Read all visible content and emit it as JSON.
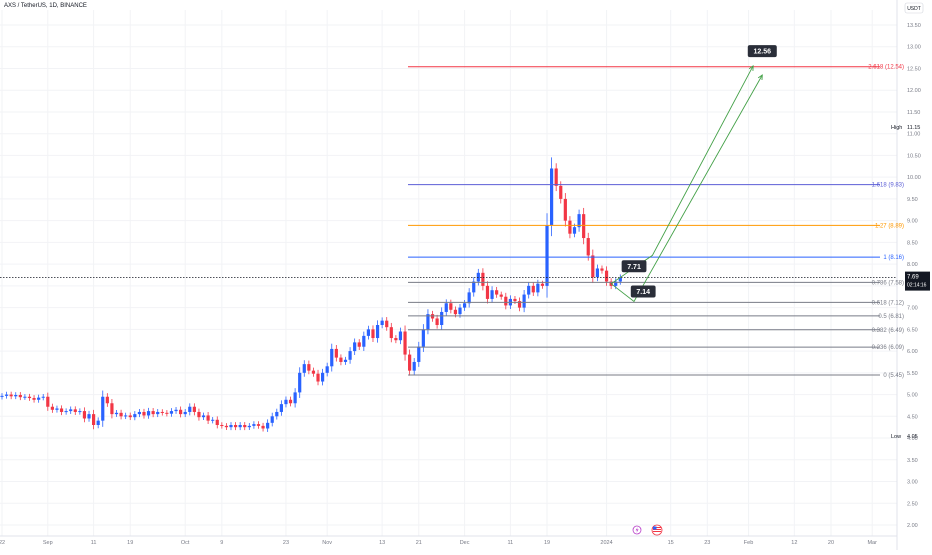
{
  "header": {
    "title": "AXS / TetherUS, 1D, BINANCE",
    "currency_button": "USDT"
  },
  "colors": {
    "up": "#2962ff",
    "down": "#f23645",
    "grid": "#f2f3f6",
    "axis_text": "#787b86"
  },
  "chart_data": {
    "type": "candlestick",
    "ylim": [
      1.9,
      13.8
    ],
    "y_ticks": [
      13.5,
      13.0,
      12.5,
      12.0,
      11.5,
      11.0,
      10.5,
      10.0,
      9.5,
      9.0,
      8.5,
      8.0,
      7.5,
      7.0,
      6.5,
      6.0,
      5.5,
      5.0,
      4.5,
      4.0,
      3.5,
      3.0,
      2.5,
      2.0
    ],
    "y_tick_labels": [
      "13.50",
      "13.00",
      "12.50",
      "12.00",
      "11.50",
      "11.00",
      "10.50",
      "10.00",
      "9.50",
      "9.00",
      "8.50",
      "8.00",
      "7.50",
      "7.00",
      "6.50",
      "6.00",
      "5.50",
      "5.00",
      "4.50",
      "4.00",
      "3.50",
      "3.00",
      "2.50",
      "2.00"
    ],
    "x_ticks": [
      {
        "label": "22",
        "day": 0
      },
      {
        "label": "Sep",
        "day": 10
      },
      {
        "label": "11",
        "day": 20
      },
      {
        "label": "19",
        "day": 28
      },
      {
        "label": "Oct",
        "day": 40
      },
      {
        "label": "9",
        "day": 48
      },
      {
        "label": "23",
        "day": 62
      },
      {
        "label": "Nov",
        "day": 71
      },
      {
        "label": "13",
        "day": 83
      },
      {
        "label": "21",
        "day": 91
      },
      {
        "label": "Dec",
        "day": 101
      },
      {
        "label": "11",
        "day": 111
      },
      {
        "label": "19",
        "day": 119
      },
      {
        "label": "2024",
        "day": 132
      },
      {
        "label": "15",
        "day": 146
      },
      {
        "label": "23",
        "day": 154
      },
      {
        "label": "Feb",
        "day": 163
      },
      {
        "label": "12",
        "day": 173
      },
      {
        "label": "20",
        "day": 181
      },
      {
        "label": "Mar",
        "day": 190
      }
    ],
    "close_series": [
      4.97,
      5.0,
      4.96,
      4.99,
      4.94,
      4.95,
      4.92,
      4.88,
      4.93,
      4.95,
      4.72,
      4.65,
      4.68,
      4.6,
      4.62,
      4.66,
      4.6,
      4.62,
      4.45,
      4.55,
      4.3,
      4.4,
      4.95,
      4.8,
      4.55,
      4.58,
      4.5,
      4.52,
      4.48,
      4.55,
      4.6,
      4.52,
      4.62,
      4.55,
      4.6,
      4.58,
      4.56,
      4.62,
      4.65,
      4.55,
      4.6,
      4.72,
      4.6,
      4.48,
      4.52,
      4.4,
      4.42,
      4.3,
      4.28,
      4.25,
      4.3,
      4.25,
      4.3,
      4.25,
      4.28,
      4.32,
      4.28,
      4.22,
      4.35,
      4.5,
      4.6,
      4.78,
      4.88,
      4.8,
      5.05,
      5.5,
      5.7,
      5.55,
      5.48,
      5.3,
      5.5,
      5.65,
      6.05,
      5.85,
      5.75,
      5.8,
      6.0,
      6.2,
      6.1,
      6.35,
      6.5,
      6.3,
      6.6,
      6.7,
      6.55,
      6.3,
      6.25,
      6.45,
      5.92,
      5.55,
      5.75,
      6.1,
      6.5,
      6.85,
      6.75,
      6.6,
      6.9,
      7.1,
      6.95,
      6.85,
      7.0,
      7.1,
      7.35,
      7.6,
      7.8,
      7.5,
      7.2,
      7.4,
      7.3,
      7.25,
      7.05,
      7.2,
      7.15,
      7.0,
      7.3,
      7.5,
      7.35,
      7.55,
      7.5,
      8.9,
      10.2,
      9.8,
      9.5,
      9.0,
      8.7,
      8.85,
      9.15,
      8.6,
      8.2,
      7.7,
      7.9,
      7.85,
      7.6,
      7.5,
      7.6,
      7.69
    ],
    "current_price": "7.69",
    "countdown": "02:14:16",
    "high_label": "High",
    "high_value": "11.15",
    "low_label": "Low",
    "low_value": "4.05",
    "fib_levels": [
      {
        "ratio": "2.618",
        "price": 12.54,
        "label": "2.618 (12.54)",
        "color": "#f23645"
      },
      {
        "ratio": "1.618",
        "price": 9.83,
        "label": "1.618 (9.83)",
        "color": "#5b5ed6"
      },
      {
        "ratio": "1.27",
        "price": 8.89,
        "label": "1.27 (8.89)",
        "color": "#ff9800"
      },
      {
        "ratio": "1",
        "price": 8.16,
        "label": "1 (8.16)",
        "color": "#2962ff"
      },
      {
        "ratio": "0.786",
        "price": 7.58,
        "label": "0.786 (7.58)",
        "color": "#787b86"
      },
      {
        "ratio": "0.618",
        "price": 7.12,
        "label": "0.618 (7.12)",
        "color": "#787b86"
      },
      {
        "ratio": "0.5",
        "price": 6.81,
        "label": "0.5 (6.81)",
        "color": "#787b86"
      },
      {
        "ratio": "0.382",
        "price": 6.49,
        "label": "0.382 (6.49)",
        "color": "#787b86"
      },
      {
        "ratio": "0.236",
        "price": 6.09,
        "label": "0.236 (6.09)",
        "color": "#787b86"
      },
      {
        "ratio": "0",
        "price": 5.45,
        "label": "0 (5.45)",
        "color": "#787b86"
      }
    ],
    "projection_path_1": [
      [
        133,
        7.55
      ],
      [
        142,
        8.2
      ],
      [
        164,
        12.56
      ]
    ],
    "projection_path_2": [
      [
        133,
        7.55
      ],
      [
        138,
        7.14
      ],
      [
        166,
        12.35
      ]
    ],
    "annotations": [
      {
        "text": "12.56",
        "day": 166,
        "price": 12.9
      },
      {
        "text": "7.71",
        "day": 138,
        "price": 7.95
      },
      {
        "text": "7.14",
        "day": 140,
        "price": 7.37
      }
    ]
  }
}
